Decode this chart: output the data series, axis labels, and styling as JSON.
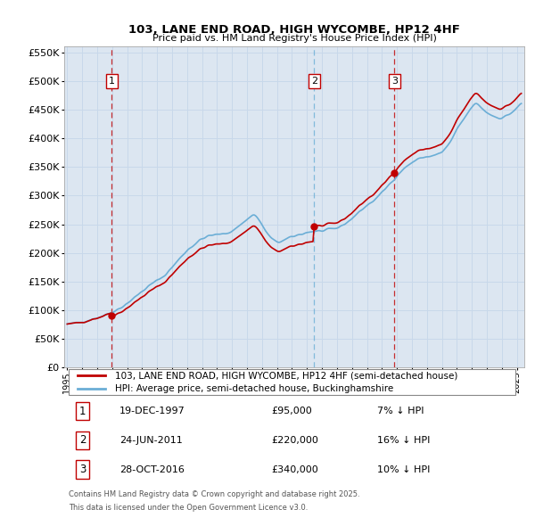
{
  "title": "103, LANE END ROAD, HIGH WYCOMBE, HP12 4HF",
  "subtitle": "Price paid vs. HM Land Registry's House Price Index (HPI)",
  "legend_line1": "103, LANE END ROAD, HIGH WYCOMBE, HP12 4HF (semi-detached house)",
  "legend_line2": "HPI: Average price, semi-detached house, Buckinghamshire",
  "footer1": "Contains HM Land Registry data © Crown copyright and database right 2025.",
  "footer2": "This data is licensed under the Open Government Licence v3.0.",
  "transactions": [
    {
      "num": 1,
      "date": "19-DEC-1997",
      "price": "£95,000",
      "hpi": "7% ↓ HPI",
      "year": 1997.97
    },
    {
      "num": 2,
      "date": "24-JUN-2011",
      "price": "£220,000",
      "hpi": "16% ↓ HPI",
      "year": 2011.48
    },
    {
      "num": 3,
      "date": "28-OCT-2016",
      "price": "£340,000",
      "hpi": "10% ↓ HPI",
      "year": 2016.83
    }
  ],
  "transaction_prices": [
    95000,
    220000,
    340000
  ],
  "vline_styles": [
    "red_dashed",
    "blue_dashed",
    "red_dashed"
  ],
  "ylim": [
    0,
    560000
  ],
  "yticks": [
    0,
    50000,
    100000,
    150000,
    200000,
    250000,
    300000,
    350000,
    400000,
    450000,
    500000,
    550000
  ],
  "xlim_start": 1994.8,
  "xlim_end": 2025.5,
  "hpi_color": "#6baed6",
  "price_color": "#c00000",
  "vline_color_red": "#c00000",
  "vline_color_blue": "#6baed6",
  "grid_color": "#c8d8ea",
  "background_color": "#dce6f1"
}
